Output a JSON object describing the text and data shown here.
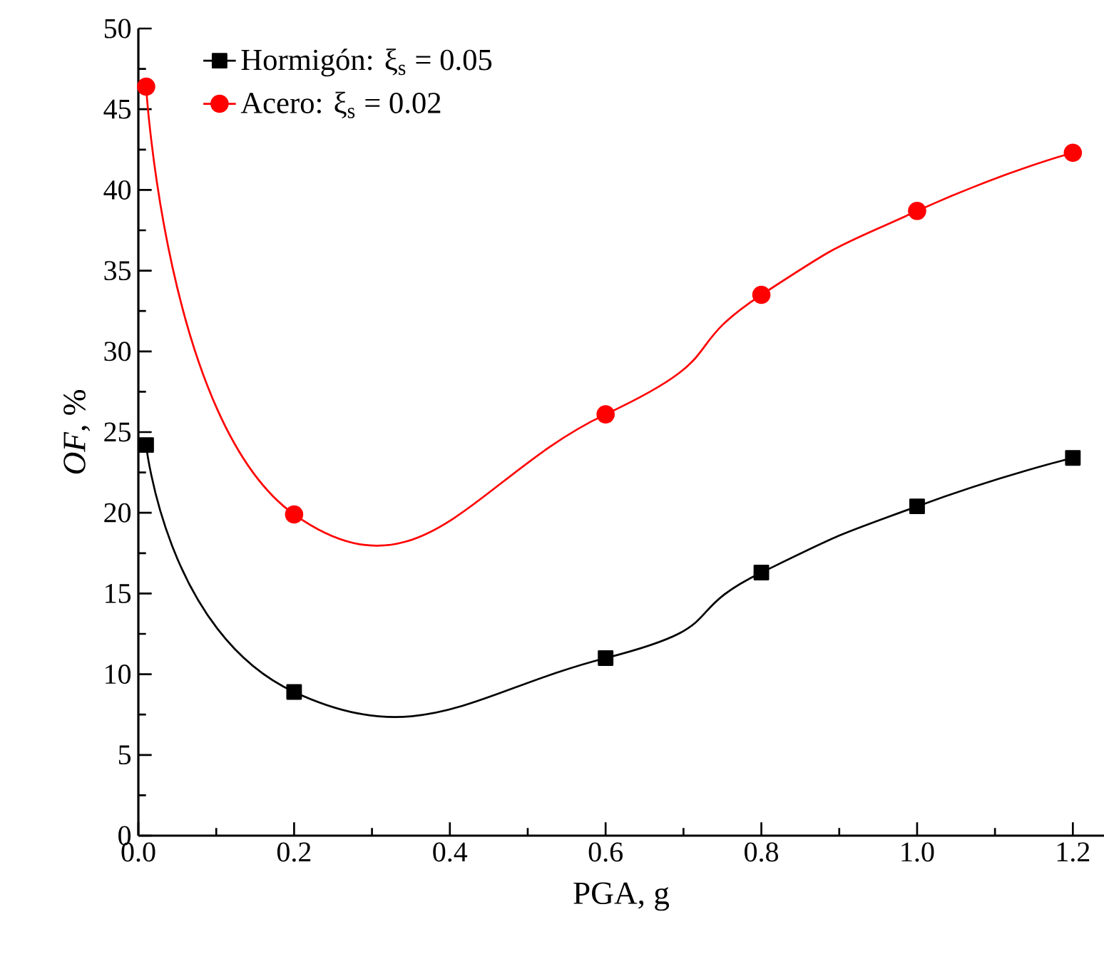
{
  "chart_data": {
    "type": "line",
    "xlabel": "PGA, g",
    "ylabel": "*OF*, %",
    "x": [
      0.01,
      0.2,
      0.6,
      0.8,
      1.0,
      1.2
    ],
    "series": [
      {
        "name": "Hormigón: ξ$_{s}$ = 0.05",
        "color": "#000000",
        "marker": "square",
        "values": [
          24.2,
          8.9,
          11.0,
          16.3,
          20.4,
          23.4
        ]
      },
      {
        "name": "Acero: ξ$_{s}$ = 0.02",
        "color": "#ff0000",
        "marker": "circle",
        "values": [
          46.4,
          19.9,
          26.1,
          33.5,
          38.7,
          42.3
        ]
      }
    ],
    "xlim": [
      0,
      1.24
    ],
    "ylim": [
      0,
      50
    ],
    "xticks": [
      {
        "value": 0,
        "label": "0.0"
      },
      {
        "value": 0.2,
        "label": "0.2"
      },
      {
        "value": 0.4,
        "label": "0.4"
      },
      {
        "value": 0.6,
        "label": "0.6"
      },
      {
        "value": 0.8,
        "label": "0.8"
      },
      {
        "value": 1.0,
        "label": "1.0"
      },
      {
        "value": 1.2,
        "label": "1.2"
      }
    ],
    "yticks": [
      0,
      5,
      10,
      15,
      20,
      25,
      30,
      35,
      40,
      45,
      50
    ],
    "grid": false,
    "legend": "top left",
    "line_style": "solid"
  }
}
